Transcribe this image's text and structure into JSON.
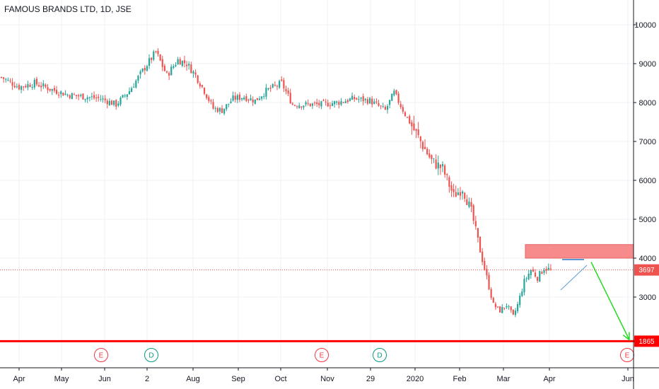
{
  "chart_data": {
    "type": "candlestick",
    "title": "FAMOUS BRANDS LTD, 1D, JSE",
    "x_ticks": [
      "Apr",
      "May",
      "Jun",
      "2",
      "Aug",
      "Sep",
      "Oct",
      "Nov",
      "29",
      "2020",
      "Feb",
      "Mar",
      "Apr",
      "Jun"
    ],
    "y_ticks": [
      3000,
      4000,
      5000,
      6000,
      7000,
      8000,
      9000,
      10000
    ],
    "ylim": [
      1780,
      10450
    ],
    "price_levels": {
      "current": 3697,
      "support": 1865
    },
    "resistance_zone": {
      "low": 4000,
      "high": 4350
    },
    "series": [
      {
        "name": "close",
        "anchors": [
          {
            "t": 0,
            "v": 8650
          },
          {
            "t": 8,
            "v": 8400
          },
          {
            "t": 15,
            "v": 8500
          },
          {
            "t": 22,
            "v": 8350
          },
          {
            "t": 30,
            "v": 8200
          },
          {
            "t": 38,
            "v": 8150
          },
          {
            "t": 45,
            "v": 8100
          },
          {
            "t": 52,
            "v": 7950
          },
          {
            "t": 58,
            "v": 8300
          },
          {
            "t": 65,
            "v": 8900
          },
          {
            "t": 70,
            "v": 9300
          },
          {
            "t": 75,
            "v": 8700
          },
          {
            "t": 80,
            "v": 9100
          },
          {
            "t": 84,
            "v": 9000
          },
          {
            "t": 88,
            "v": 8700
          },
          {
            "t": 92,
            "v": 8300
          },
          {
            "t": 96,
            "v": 7850
          },
          {
            "t": 100,
            "v": 7800
          },
          {
            "t": 105,
            "v": 8100
          },
          {
            "t": 110,
            "v": 8150
          },
          {
            "t": 115,
            "v": 8050
          },
          {
            "t": 120,
            "v": 8300
          },
          {
            "t": 127,
            "v": 8500
          },
          {
            "t": 132,
            "v": 7950
          },
          {
            "t": 138,
            "v": 7950
          },
          {
            "t": 145,
            "v": 7950
          },
          {
            "t": 152,
            "v": 8000
          },
          {
            "t": 160,
            "v": 8100
          },
          {
            "t": 167,
            "v": 8050
          },
          {
            "t": 174,
            "v": 7800
          },
          {
            "t": 178,
            "v": 8250
          },
          {
            "t": 183,
            "v": 7700
          },
          {
            "t": 189,
            "v": 7100
          },
          {
            "t": 195,
            "v": 6500
          },
          {
            "t": 200,
            "v": 6300
          },
          {
            "t": 205,
            "v": 5600
          },
          {
            "t": 209,
            "v": 5800
          },
          {
            "t": 213,
            "v": 5200
          },
          {
            "t": 217,
            "v": 4200
          },
          {
            "t": 220,
            "v": 3500
          },
          {
            "t": 223,
            "v": 2800
          },
          {
            "t": 226,
            "v": 2650
          },
          {
            "t": 229,
            "v": 2800
          },
          {
            "t": 232,
            "v": 2500
          },
          {
            "t": 234,
            "v": 2800
          },
          {
            "t": 237,
            "v": 3400
          },
          {
            "t": 240,
            "v": 3700
          },
          {
            "t": 243,
            "v": 3500
          },
          {
            "t": 246,
            "v": 3750
          },
          {
            "t": 249,
            "v": 3700
          }
        ]
      }
    ],
    "events": [
      {
        "label": "E",
        "color": "#f23645",
        "t": 36
      },
      {
        "label": "D",
        "color": "#089981",
        "t": 52
      },
      {
        "label": "E",
        "color": "#f23645",
        "t": 116
      },
      {
        "label": "D",
        "color": "#089981",
        "t": 135
      },
      {
        "label": "E",
        "color": "#f23645",
        "t": 281
      }
    ],
    "forecast_arrow": {
      "from": {
        "t": 251,
        "v": 3900
      },
      "to": {
        "t": 281,
        "v": 1900
      }
    },
    "colors": {
      "up": "#26a69a",
      "down": "#ef5350",
      "support": "#ff0000",
      "zone": "#f78b8b",
      "arrow": "#22dd22",
      "grid": "#eef1f5",
      "text": "#131722"
    }
  }
}
